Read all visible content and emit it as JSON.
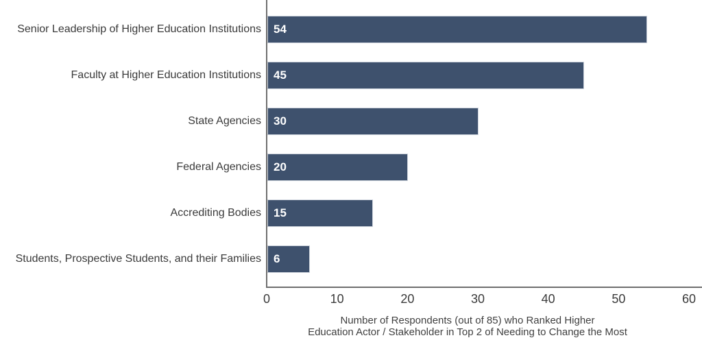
{
  "chart_data": {
    "type": "bar",
    "orientation": "horizontal",
    "title": "",
    "categories": [
      "Senior Leadership of Higher Education Institutions",
      "Faculty at Higher Education Institutions",
      "State Agencies",
      "Federal Agencies",
      "Accrediting Bodies",
      "Students, Prospective Students, and their Families"
    ],
    "values": [
      54,
      45,
      30,
      20,
      15,
      6
    ],
    "value_labels": [
      "54",
      "45",
      "30",
      "20",
      "15",
      "6"
    ],
    "xlabel_lines": [
      "Number of Respondents (out of 85) who Ranked Higher",
      "Education Actor / Stakeholder in Top 2 of Needing to Change the Most"
    ],
    "xlim": [
      0,
      60
    ],
    "xticks": [
      0,
      10,
      20,
      30,
      40,
      50,
      60
    ],
    "grid": false,
    "legend": null,
    "bar_color": "#3E516D",
    "bar_border_color": "#CCD2DB",
    "axis_line_color": "#6E6E6E",
    "label_text_color": "#3A3A3A",
    "value_label_color": "#FFFFFF"
  }
}
